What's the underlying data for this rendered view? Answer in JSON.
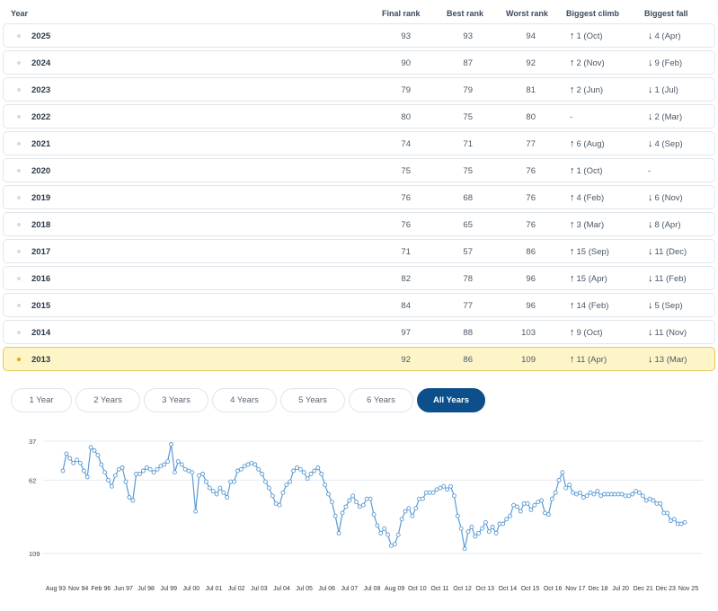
{
  "table": {
    "headers": {
      "year": "Year",
      "final": "Final rank",
      "best": "Best rank",
      "worst": "Worst rank",
      "climb": "Biggest climb",
      "fall": "Biggest fall"
    },
    "rows": [
      {
        "year": "2025",
        "final": "93",
        "best": "93",
        "worst": "94",
        "climb": "1 (Oct)",
        "fall": "4 (Apr)"
      },
      {
        "year": "2024",
        "final": "90",
        "best": "87",
        "worst": "92",
        "climb": "2 (Nov)",
        "fall": "9 (Feb)"
      },
      {
        "year": "2023",
        "final": "79",
        "best": "79",
        "worst": "81",
        "climb": "2 (Jun)",
        "fall": "1 (Jul)"
      },
      {
        "year": "2022",
        "final": "80",
        "best": "75",
        "worst": "80",
        "climb": "-",
        "fall": "2 (Mar)"
      },
      {
        "year": "2021",
        "final": "74",
        "best": "71",
        "worst": "77",
        "climb": "6 (Aug)",
        "fall": "4 (Sep)"
      },
      {
        "year": "2020",
        "final": "75",
        "best": "75",
        "worst": "76",
        "climb": "1 (Oct)",
        "fall": "-"
      },
      {
        "year": "2019",
        "final": "76",
        "best": "68",
        "worst": "76",
        "climb": "4 (Feb)",
        "fall": "6 (Nov)"
      },
      {
        "year": "2018",
        "final": "76",
        "best": "65",
        "worst": "76",
        "climb": "3 (Mar)",
        "fall": "8 (Apr)"
      },
      {
        "year": "2017",
        "final": "71",
        "best": "57",
        "worst": "86",
        "climb": "15 (Sep)",
        "fall": "11 (Dec)"
      },
      {
        "year": "2016",
        "final": "82",
        "best": "78",
        "worst": "96",
        "climb": "15 (Apr)",
        "fall": "11 (Feb)"
      },
      {
        "year": "2015",
        "final": "84",
        "best": "77",
        "worst": "96",
        "climb": "14 (Feb)",
        "fall": "5 (Sep)"
      },
      {
        "year": "2014",
        "final": "97",
        "best": "88",
        "worst": "103",
        "climb": "9 (Oct)",
        "fall": "11 (Nov)"
      },
      {
        "year": "2013",
        "final": "92",
        "best": "86",
        "worst": "109",
        "climb": "11 (Apr)",
        "fall": "13 (Mar)"
      }
    ],
    "highlighted_year": "2013"
  },
  "tabs": [
    {
      "label": "1 Year",
      "active": false
    },
    {
      "label": "2 Years",
      "active": false
    },
    {
      "label": "3 Years",
      "active": false
    },
    {
      "label": "4 Years",
      "active": false
    },
    {
      "label": "5 Years",
      "active": false
    },
    {
      "label": "6 Years",
      "active": false
    },
    {
      "label": "All Years",
      "active": true
    }
  ],
  "colors": {
    "accent": "#0d4f8b",
    "line": "#5a9bd4",
    "highlight_bg": "#fdf5c8",
    "highlight_border": "#e6c85a"
  },
  "chart_data": {
    "type": "line",
    "title": "",
    "xlabel": "",
    "ylabel": "",
    "y_inverted": true,
    "ylim": [
      37,
      109
    ],
    "yticks": [
      "37",
      "62",
      "109"
    ],
    "x_tick_labels": [
      "Aug 93",
      "Nov 94",
      "Feb 96",
      "Jun 97",
      "Jul 98",
      "Jul 99",
      "Jul 00",
      "Jul 01",
      "Jul 02",
      "Jul 03",
      "Jul 04",
      "Jul 05",
      "Jul 06",
      "Jul 07",
      "Jul 08",
      "Aug 09",
      "Oct 10",
      "Oct 11",
      "Oct 12",
      "Oct 13",
      "Oct 14",
      "Oct 15",
      "Oct 16",
      "Nov 17",
      "Dec 18",
      "Jul 20",
      "Dec 21",
      "Dec 23",
      "Nov 25"
    ],
    "series": [
      {
        "values": [
          56,
          45,
          48,
          51,
          49,
          51,
          56,
          60,
          41,
          43,
          46,
          52,
          57,
          62,
          66,
          59,
          55,
          54,
          63,
          73,
          75,
          58,
          58,
          56,
          54,
          55,
          57,
          55,
          53,
          52,
          50,
          39,
          57,
          50,
          52,
          55,
          56,
          57,
          82,
          59,
          58,
          63,
          67,
          69,
          71,
          67,
          70,
          73,
          63,
          63,
          56,
          55,
          53,
          52,
          51,
          52,
          55,
          58,
          63,
          67,
          72,
          77,
          78,
          70,
          65,
          63,
          56,
          54,
          55,
          57,
          61,
          58,
          56,
          54,
          58,
          65,
          71,
          76,
          85,
          96,
          83,
          79,
          75,
          72,
          76,
          79,
          78,
          74,
          74,
          84,
          91,
          96,
          93,
          97,
          104,
          103,
          97,
          87,
          82,
          80,
          85,
          80,
          74,
          74,
          70,
          70,
          70,
          68,
          67,
          66,
          68,
          66,
          72,
          85,
          93,
          106,
          95,
          92,
          98,
          96,
          93,
          89,
          95,
          92,
          96,
          90,
          90,
          87,
          85,
          78,
          79,
          82,
          77,
          77,
          81,
          78,
          76,
          75,
          83,
          84,
          74,
          70,
          62,
          57,
          67,
          65,
          70,
          71,
          70,
          73,
          72,
          70,
          71,
          69,
          72,
          71,
          71,
          71,
          71,
          71,
          71,
          72,
          72,
          71,
          69,
          70,
          72,
          75,
          74,
          75,
          77,
          77,
          83,
          83,
          88,
          87,
          90,
          90,
          89
        ]
      }
    ]
  }
}
